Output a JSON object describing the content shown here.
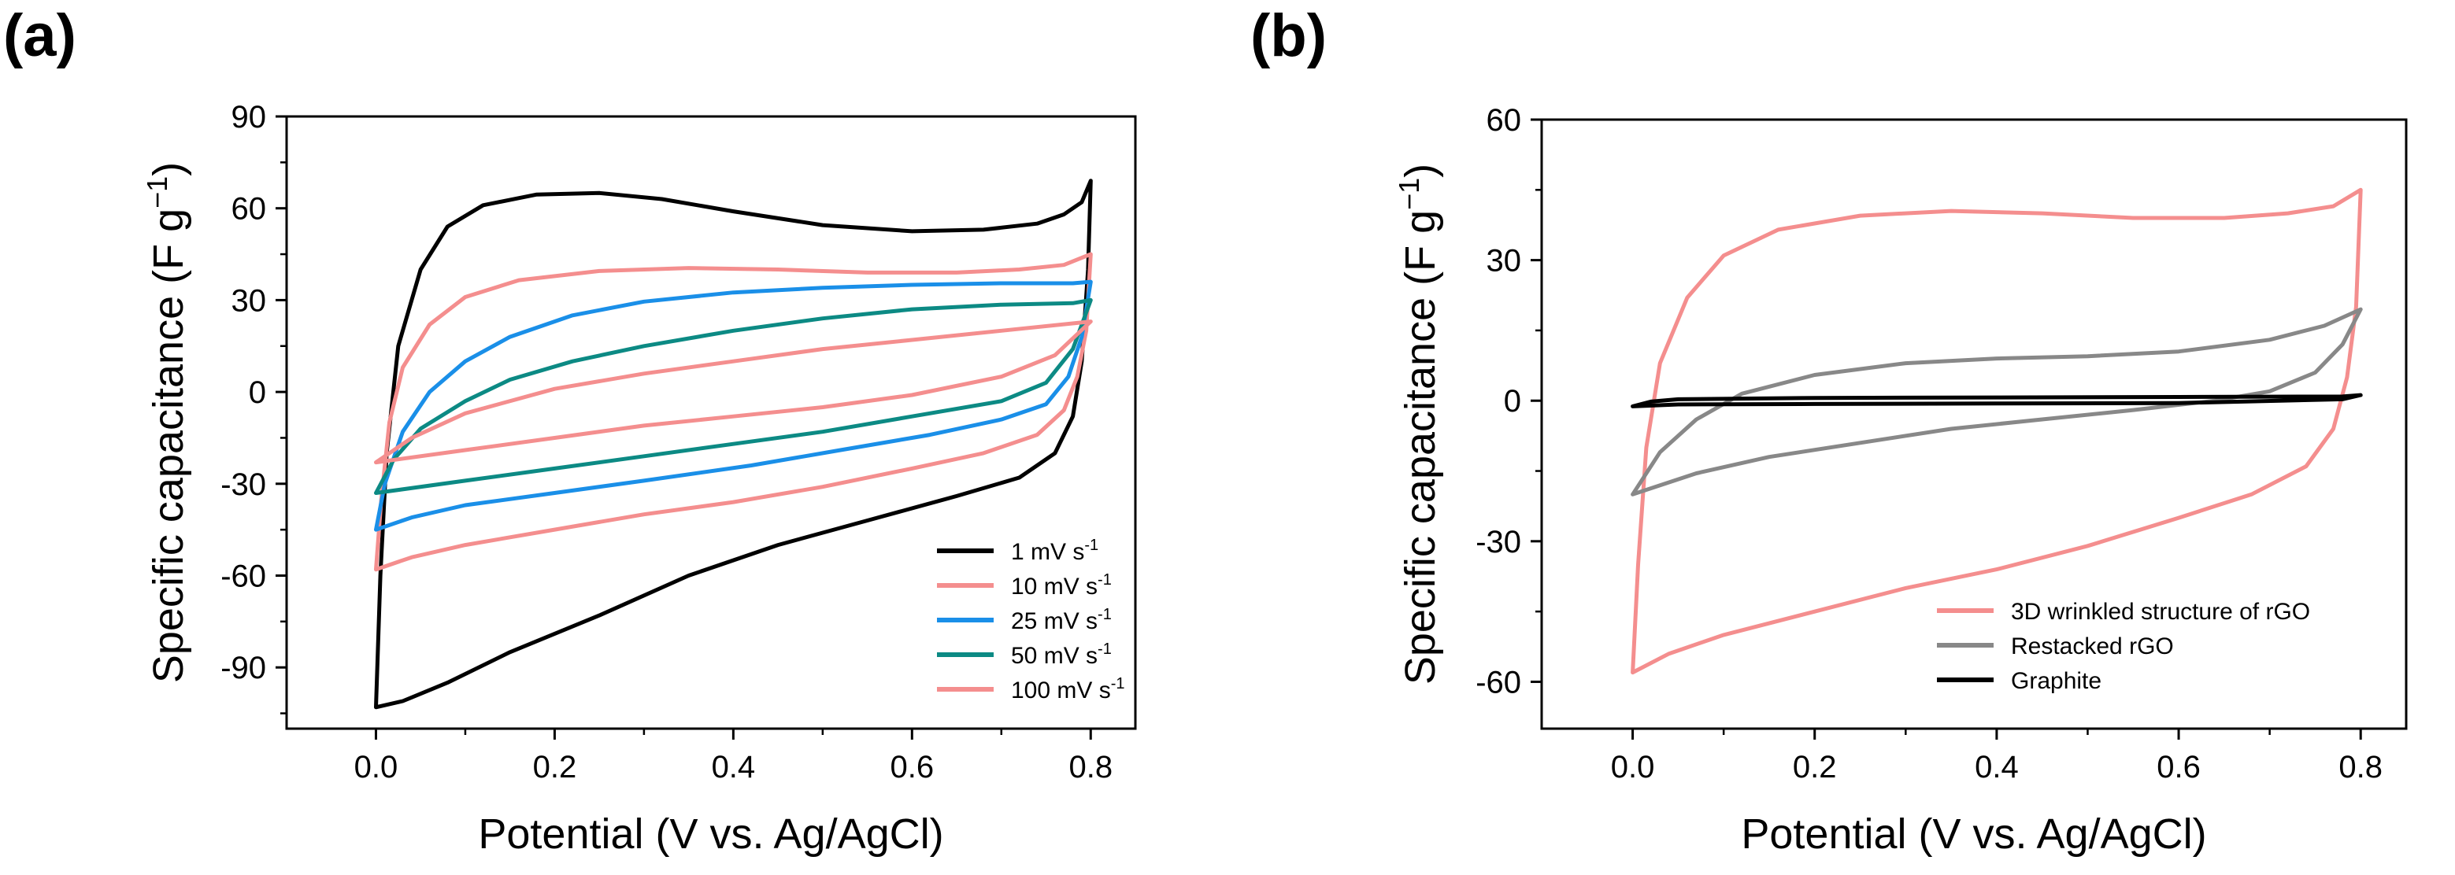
{
  "chart_data": [
    {
      "type": "line",
      "panel_label": "(a)",
      "xlabel": "Potential (V vs. Ag/AgCl)",
      "ylabel_main": "Specific capacitance (F g",
      "ylabel_sup": "−1",
      "ylabel_tail": ")",
      "xlim": [
        -0.1,
        0.85
      ],
      "ylim": [
        -110,
        90
      ],
      "xticks": [
        0.0,
        0.2,
        0.4,
        0.6,
        0.8
      ],
      "xtick_labels": [
        "0.0",
        "0.2",
        "0.4",
        "0.6",
        "0.8"
      ],
      "yticks": [
        90,
        60,
        30,
        0,
        -30,
        -60,
        -90
      ],
      "ytick_labels": [
        "90",
        "60",
        "30",
        "0",
        "-30",
        "-60",
        "-90"
      ],
      "legend_position": "bottom-right",
      "series": [
        {
          "name": "1 mV s",
          "sup": "-1",
          "color": "#000000",
          "upper": [
            [
              0.0,
              -103
            ],
            [
              0.005,
              -60
            ],
            [
              0.012,
              -20
            ],
            [
              0.025,
              15
            ],
            [
              0.05,
              40
            ],
            [
              0.08,
              54
            ],
            [
              0.12,
              61
            ],
            [
              0.18,
              64.5
            ],
            [
              0.25,
              65
            ],
            [
              0.32,
              63
            ],
            [
              0.4,
              59
            ],
            [
              0.5,
              54.5
            ],
            [
              0.6,
              52.5
            ],
            [
              0.68,
              53
            ],
            [
              0.74,
              55
            ],
            [
              0.77,
              58
            ],
            [
              0.79,
              62
            ],
            [
              0.8,
              69
            ]
          ],
          "lower": [
            [
              0.8,
              69
            ],
            [
              0.797,
              40
            ],
            [
              0.79,
              10
            ],
            [
              0.78,
              -8
            ],
            [
              0.76,
              -20
            ],
            [
              0.72,
              -28
            ],
            [
              0.65,
              -34
            ],
            [
              0.55,
              -42
            ],
            [
              0.45,
              -50
            ],
            [
              0.35,
              -60
            ],
            [
              0.25,
              -73
            ],
            [
              0.15,
              -85
            ],
            [
              0.08,
              -95
            ],
            [
              0.03,
              -101
            ],
            [
              0.0,
              -103
            ]
          ]
        },
        {
          "name": "10 mV s",
          "sup": "-1",
          "color": "#f48e8e",
          "upper": [
            [
              0.0,
              -58
            ],
            [
              0.006,
              -35
            ],
            [
              0.015,
              -10
            ],
            [
              0.03,
              8
            ],
            [
              0.06,
              22
            ],
            [
              0.1,
              31
            ],
            [
              0.16,
              36.5
            ],
            [
              0.25,
              39.5
            ],
            [
              0.35,
              40.5
            ],
            [
              0.45,
              40
            ],
            [
              0.55,
              39
            ],
            [
              0.65,
              39
            ],
            [
              0.72,
              40
            ],
            [
              0.77,
              41.5
            ],
            [
              0.8,
              45
            ]
          ],
          "lower": [
            [
              0.8,
              45
            ],
            [
              0.795,
              20
            ],
            [
              0.785,
              5
            ],
            [
              0.77,
              -6
            ],
            [
              0.74,
              -14
            ],
            [
              0.68,
              -20
            ],
            [
              0.6,
              -25
            ],
            [
              0.5,
              -31
            ],
            [
              0.4,
              -36
            ],
            [
              0.3,
              -40
            ],
            [
              0.2,
              -45
            ],
            [
              0.1,
              -50
            ],
            [
              0.04,
              -54
            ],
            [
              0.0,
              -58
            ]
          ]
        },
        {
          "name": "25 mV s",
          "sup": "-1",
          "color": "#1a8fe8",
          "upper": [
            [
              0.0,
              -45
            ],
            [
              0.01,
              -30
            ],
            [
              0.03,
              -13
            ],
            [
              0.06,
              0
            ],
            [
              0.1,
              10
            ],
            [
              0.15,
              18
            ],
            [
              0.22,
              25
            ],
            [
              0.3,
              29.5
            ],
            [
              0.4,
              32.5
            ],
            [
              0.5,
              34
            ],
            [
              0.6,
              35
            ],
            [
              0.7,
              35.5
            ],
            [
              0.78,
              35.5
            ],
            [
              0.8,
              36
            ]
          ],
          "lower": [
            [
              0.8,
              36
            ],
            [
              0.79,
              18
            ],
            [
              0.775,
              5
            ],
            [
              0.75,
              -4
            ],
            [
              0.7,
              -9
            ],
            [
              0.62,
              -14
            ],
            [
              0.52,
              -19
            ],
            [
              0.42,
              -24
            ],
            [
              0.3,
              -29
            ],
            [
              0.2,
              -33
            ],
            [
              0.1,
              -37
            ],
            [
              0.04,
              -41
            ],
            [
              0.0,
              -45
            ]
          ]
        },
        {
          "name": "50 mV s",
          "sup": "-1",
          "color": "#0c8a84",
          "upper": [
            [
              0.0,
              -33
            ],
            [
              0.02,
              -22
            ],
            [
              0.05,
              -12
            ],
            [
              0.1,
              -3
            ],
            [
              0.15,
              4
            ],
            [
              0.22,
              10
            ],
            [
              0.3,
              15
            ],
            [
              0.4,
              20
            ],
            [
              0.5,
              24
            ],
            [
              0.6,
              27
            ],
            [
              0.7,
              28.5
            ],
            [
              0.78,
              29
            ],
            [
              0.8,
              30
            ]
          ],
          "lower": [
            [
              0.8,
              30
            ],
            [
              0.78,
              14
            ],
            [
              0.75,
              3
            ],
            [
              0.7,
              -3
            ],
            [
              0.6,
              -8
            ],
            [
              0.5,
              -13
            ],
            [
              0.4,
              -17
            ],
            [
              0.3,
              -21
            ],
            [
              0.2,
              -25
            ],
            [
              0.1,
              -29
            ],
            [
              0.0,
              -33
            ]
          ]
        },
        {
          "name": "100 mV s",
          "sup": "-1",
          "color": "#f48e8e",
          "upper": [
            [
              0.0,
              -23
            ],
            [
              0.04,
              -15
            ],
            [
              0.1,
              -7
            ],
            [
              0.2,
              1
            ],
            [
              0.3,
              6
            ],
            [
              0.4,
              10
            ],
            [
              0.5,
              14
            ],
            [
              0.6,
              17
            ],
            [
              0.7,
              20
            ],
            [
              0.8,
              23
            ]
          ],
          "lower": [
            [
              0.8,
              23
            ],
            [
              0.76,
              12
            ],
            [
              0.7,
              5
            ],
            [
              0.6,
              -1
            ],
            [
              0.5,
              -5
            ],
            [
              0.4,
              -8
            ],
            [
              0.3,
              -11
            ],
            [
              0.2,
              -15
            ],
            [
              0.1,
              -19
            ],
            [
              0.0,
              -23
            ]
          ]
        }
      ]
    },
    {
      "type": "line",
      "panel_label": "(b)",
      "xlabel": "Potential (V vs. Ag/AgCl)",
      "ylabel_main": "Specific capacitance (F g",
      "ylabel_sup": "−1",
      "ylabel_tail": ")",
      "xlim": [
        -0.1,
        0.85
      ],
      "ylim": [
        -70,
        60
      ],
      "xticks": [
        0.0,
        0.2,
        0.4,
        0.6,
        0.8
      ],
      "xtick_labels": [
        "0.0",
        "0.2",
        "0.4",
        "0.6",
        "0.8"
      ],
      "yticks": [
        60,
        30,
        0,
        -30,
        -60
      ],
      "ytick_labels": [
        "60",
        "30",
        "0",
        "-30",
        "-60"
      ],
      "legend_position": "bottom-right",
      "series": [
        {
          "name": "3D wrinkled structure of rGO",
          "color": "#f48e8e",
          "upper": [
            [
              0.0,
              -58
            ],
            [
              0.006,
              -35
            ],
            [
              0.015,
              -10
            ],
            [
              0.03,
              8
            ],
            [
              0.06,
              22
            ],
            [
              0.1,
              31
            ],
            [
              0.16,
              36.5
            ],
            [
              0.25,
              39.5
            ],
            [
              0.35,
              40.5
            ],
            [
              0.45,
              40
            ],
            [
              0.55,
              39
            ],
            [
              0.65,
              39
            ],
            [
              0.72,
              40
            ],
            [
              0.77,
              41.5
            ],
            [
              0.8,
              45
            ]
          ],
          "lower": [
            [
              0.8,
              45
            ],
            [
              0.795,
              20
            ],
            [
              0.785,
              5
            ],
            [
              0.77,
              -6
            ],
            [
              0.74,
              -14
            ],
            [
              0.68,
              -20
            ],
            [
              0.6,
              -25
            ],
            [
              0.5,
              -31
            ],
            [
              0.4,
              -36
            ],
            [
              0.3,
              -40
            ],
            [
              0.2,
              -45
            ],
            [
              0.1,
              -50
            ],
            [
              0.04,
              -54
            ],
            [
              0.0,
              -58
            ]
          ]
        },
        {
          "name": "Restacked rGO",
          "color": "#888888",
          "upper": [
            [
              0.0,
              -20
            ],
            [
              0.03,
              -11
            ],
            [
              0.07,
              -4
            ],
            [
              0.12,
              1.5
            ],
            [
              0.2,
              5.5
            ],
            [
              0.3,
              8
            ],
            [
              0.4,
              9
            ],
            [
              0.5,
              9.5
            ],
            [
              0.6,
              10.5
            ],
            [
              0.7,
              13
            ],
            [
              0.76,
              16
            ],
            [
              0.8,
              19.5
            ]
          ],
          "lower": [
            [
              0.8,
              19.5
            ],
            [
              0.78,
              12
            ],
            [
              0.75,
              6
            ],
            [
              0.7,
              2
            ],
            [
              0.64,
              0
            ],
            [
              0.55,
              -2
            ],
            [
              0.45,
              -4
            ],
            [
              0.35,
              -6
            ],
            [
              0.25,
              -9
            ],
            [
              0.15,
              -12
            ],
            [
              0.07,
              -15.5
            ],
            [
              0.0,
              -20
            ]
          ]
        },
        {
          "name": "Graphite",
          "color": "#000000",
          "upper": [
            [
              0.0,
              -1.2
            ],
            [
              0.02,
              -0.2
            ],
            [
              0.05,
              0.3
            ],
            [
              0.2,
              0.6
            ],
            [
              0.4,
              0.7
            ],
            [
              0.6,
              0.8
            ],
            [
              0.78,
              0.9
            ],
            [
              0.8,
              1.2
            ]
          ],
          "lower": [
            [
              0.8,
              1.2
            ],
            [
              0.78,
              0.3
            ],
            [
              0.6,
              -0.5
            ],
            [
              0.4,
              -0.6
            ],
            [
              0.2,
              -0.7
            ],
            [
              0.05,
              -0.8
            ],
            [
              0.0,
              -1.2
            ]
          ]
        }
      ]
    }
  ]
}
